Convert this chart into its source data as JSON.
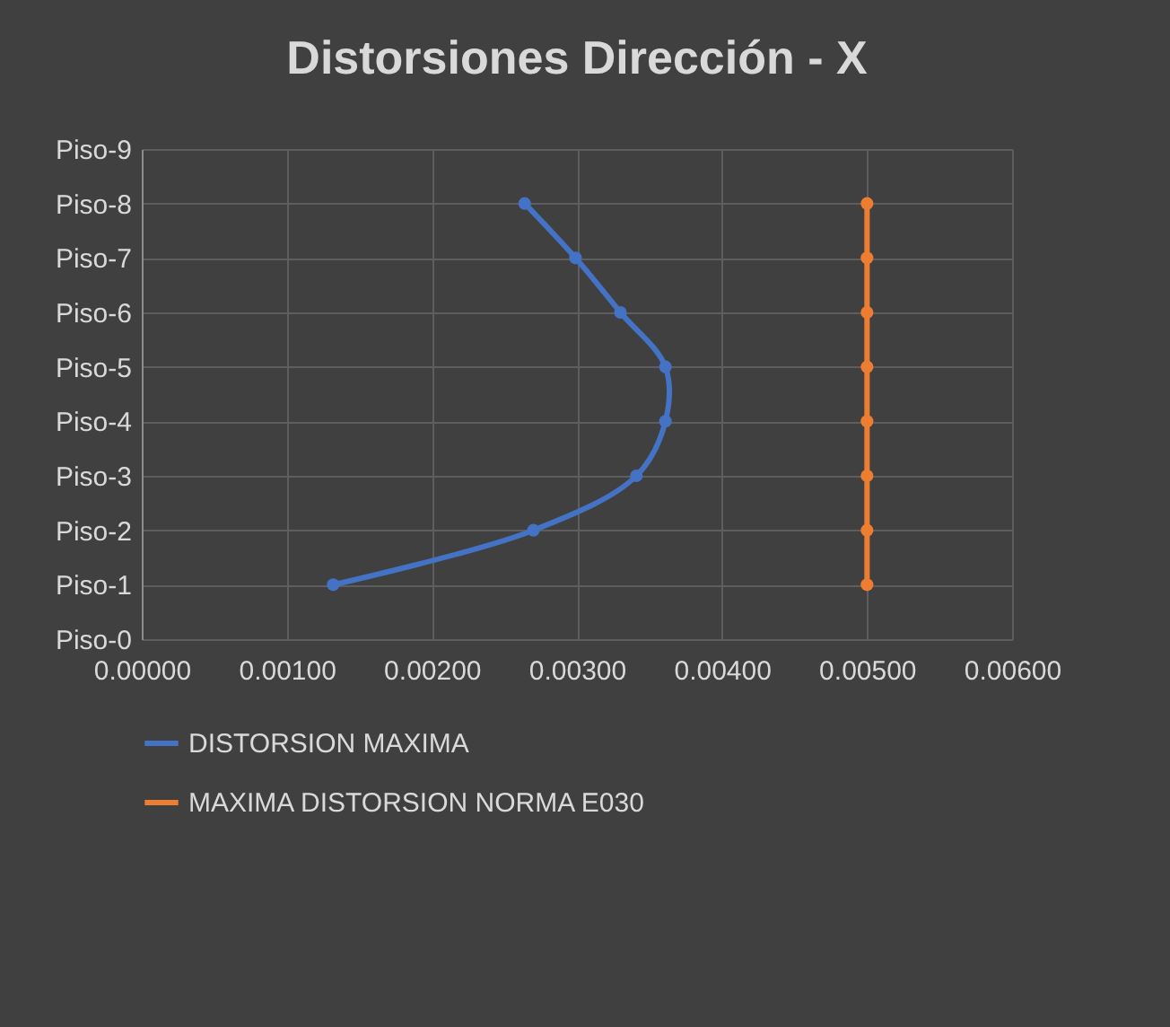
{
  "chart_data": {
    "type": "line",
    "title": "Distorsiones Dirección - X",
    "orientation": "horizontal",
    "categories": [
      "Piso-9",
      "Piso-8",
      "Piso-7",
      "Piso-6",
      "Piso-5",
      "Piso-4",
      "Piso-3",
      "Piso-2",
      "Piso-1",
      "Piso-0"
    ],
    "series": [
      {
        "name": "DISTORSION MAXIMA",
        "color": "#4472c4",
        "values": [
          null,
          0.00264,
          0.00299,
          0.0033,
          0.00361,
          0.00361,
          0.00341,
          0.0027,
          0.00132,
          null
        ]
      },
      {
        "name": "MAXIMA DISTORSION NORMA E030",
        "color": "#ed7d31",
        "values": [
          null,
          0.005,
          0.005,
          0.005,
          0.005,
          0.005,
          0.005,
          0.005,
          0.005,
          null
        ]
      }
    ],
    "xlim": [
      0,
      0.006
    ],
    "xticks": [
      {
        "value": 0,
        "label": "0.00000"
      },
      {
        "value": 0.001,
        "label": "0.00100"
      },
      {
        "value": 0.002,
        "label": "0.00200"
      },
      {
        "value": 0.003,
        "label": "0.00300"
      },
      {
        "value": 0.004,
        "label": "0.00400"
      },
      {
        "value": 0.005,
        "label": "0.00500"
      },
      {
        "value": 0.006,
        "label": "0.00600"
      }
    ],
    "grid": true,
    "legend": "bottom",
    "marker": "circle",
    "line_style": "solid"
  }
}
